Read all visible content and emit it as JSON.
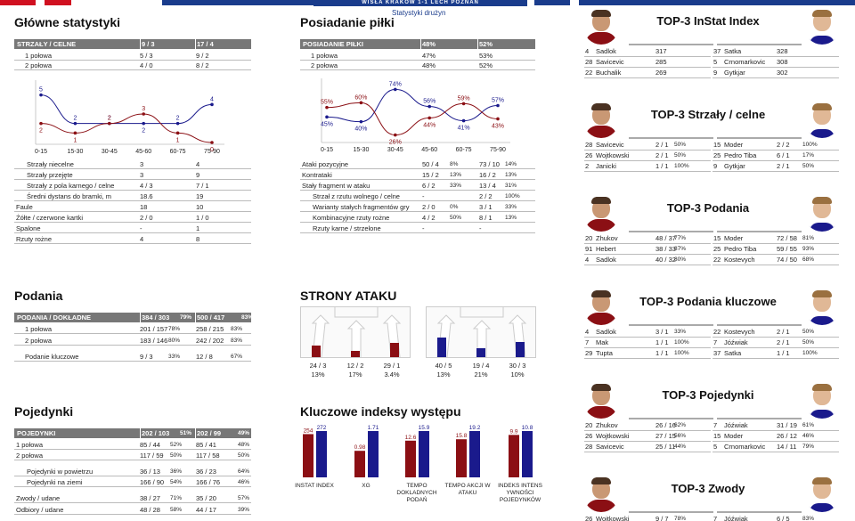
{
  "match_title": "WISŁA KRAKÓW 1-1 LECH POZNAŃ",
  "subtitle": "Statystyki drużyn",
  "colors": {
    "home": "#8b0f14",
    "away": "#1a1a8c",
    "header": "#777777"
  },
  "main_stats": {
    "title": "Główne statystyki",
    "header": {
      "label": "STRZAŁY / CELNE",
      "home": "9 / 3",
      "away": "17 / 4"
    },
    "rows": [
      {
        "label": "1 połowa",
        "home": "5 / 3",
        "away": "9 / 2"
      },
      {
        "label": "2 połowa",
        "home": "4 / 0",
        "away": "8 / 2"
      }
    ],
    "chart_data": {
      "type": "line",
      "categories": [
        "0-15",
        "15-30",
        "30-45",
        "45-60",
        "60-75",
        "75-90"
      ],
      "series": [
        {
          "color": "#1a1a8c",
          "values": [
            5,
            2,
            2,
            2,
            2,
            4
          ]
        },
        {
          "color": "#8b0f14",
          "values": [
            2,
            1,
            2,
            3,
            1,
            0
          ]
        }
      ],
      "ylim": [
        0,
        6
      ]
    },
    "rows2": [
      {
        "label": "Strzały niecelne",
        "home": "3",
        "away": "4",
        "indent": true
      },
      {
        "label": "Strzały przejęte",
        "home": "3",
        "away": "9",
        "indent": true
      },
      {
        "label": "Strzały z pola karnego / celne",
        "home": "4 / 3",
        "away": "7 / 1",
        "indent": true
      },
      {
        "label": "Średni dystans do bramki, m",
        "home": "18.6",
        "away": "19",
        "indent": true
      },
      {
        "label": "Faule",
        "home": "18",
        "away": "10",
        "indent": false
      },
      {
        "label": "Żółte / czerwone kartki",
        "home": "2 / 0",
        "away": "1 / 0",
        "indent": false
      },
      {
        "label": "Spalone",
        "home": "-",
        "away": "1",
        "indent": false
      },
      {
        "label": "Rzuty rożne",
        "home": "4",
        "away": "8",
        "indent": false
      }
    ]
  },
  "possession": {
    "title": "Posiadanie piłki",
    "header": {
      "label": "POSIADANIE PIŁKI",
      "home": "48%",
      "away": "52%"
    },
    "rows": [
      {
        "label": "1 połowa",
        "home": "47%",
        "away": "53%"
      },
      {
        "label": "2 połowa",
        "home": "48%",
        "away": "52%"
      }
    ],
    "chart_data": {
      "type": "line",
      "categories": [
        "0-15",
        "15-30",
        "30-45",
        "45-60",
        "60-75",
        "75-90"
      ],
      "series": [
        {
          "color": "#1a1a8c",
          "values": [
            45,
            40,
            74,
            56,
            41,
            57
          ]
        },
        {
          "color": "#8b0f14",
          "values": [
            55,
            60,
            26,
            44,
            59,
            43
          ]
        }
      ],
      "ylim": [
        20,
        80
      ],
      "value_labels": [
        "45%",
        "40%",
        "74%",
        "56%",
        "41%",
        "57%",
        "55%",
        "60%",
        "26%",
        "44%",
        "59%",
        "43%"
      ]
    },
    "rows2": [
      {
        "label": "Ataki pozycyjne",
        "home": "50 / 4",
        "hp": "8%",
        "away": "73 / 10",
        "ap": "14%",
        "indent": 0
      },
      {
        "label": "Kontrataki",
        "home": "15 / 2",
        "hp": "13%",
        "away": "16 / 2",
        "ap": "13%",
        "indent": 0
      },
      {
        "label": "Stały fragment w ataku",
        "home": "6 / 2",
        "hp": "33%",
        "away": "13 / 4",
        "ap": "31%",
        "indent": 0
      },
      {
        "label": "Strzał z rzutu wolnego / celne",
        "home": "-",
        "hp": "",
        "away": "2 / 2",
        "ap": "100%",
        "indent": 1
      },
      {
        "label": "Warianty stałych fragmentów gry",
        "home": "2 / 0",
        "hp": "0%",
        "away": "3 / 1",
        "ap": "33%",
        "indent": 1
      },
      {
        "label": "Kombinacyjne rzuty rożne",
        "home": "4 / 2",
        "hp": "50%",
        "away": "8 / 1",
        "ap": "13%",
        "indent": 1
      },
      {
        "label": "Rzuty karne / strzelone",
        "home": "-",
        "hp": "",
        "away": "-",
        "ap": "",
        "indent": 1
      }
    ]
  },
  "passes": {
    "title": "Podania",
    "header": {
      "label": "PODANIA / DOKŁADNE",
      "home": "384 / 303",
      "hp": "79%",
      "away": "500 / 417",
      "ap": "83%"
    },
    "rows": [
      {
        "label": "1 połowa",
        "home": "201 / 157",
        "hp": "78%",
        "away": "258 / 215",
        "ap": "83%"
      },
      {
        "label": "2 połowa",
        "home": "183 / 146",
        "hp": "80%",
        "away": "242 / 202",
        "ap": "83%"
      },
      {
        "label": "Podanie kluczowe",
        "home": "9 / 3",
        "hp": "33%",
        "away": "12 / 8",
        "ap": "67%"
      }
    ]
  },
  "attack_sides": {
    "title": "STRONY ATAKU",
    "home": [
      {
        "count": "24 / 3",
        "pct": "13%",
        "share": 24
      },
      {
        "count": "12 / 2",
        "pct": "17%",
        "share": 12
      },
      {
        "count": "29 / 1",
        "pct": "3.4%",
        "share": 29
      }
    ],
    "away": [
      {
        "count": "40 / 5",
        "pct": "13%",
        "share": 40
      },
      {
        "count": "19 / 4",
        "pct": "21%",
        "share": 19
      },
      {
        "count": "30 / 3",
        "pct": "10%",
        "share": 30
      }
    ]
  },
  "duels": {
    "title": "Pojedynki",
    "header": {
      "label": "POJEDYNKI",
      "home": "202 / 103",
      "hp": "51%",
      "away": "202 / 99",
      "ap": "49%"
    },
    "rows": [
      {
        "label": "1 połowa",
        "home": "85 / 44",
        "hp": "52%",
        "away": "85 / 41",
        "ap": "48%",
        "indent": false
      },
      {
        "label": "2 połowa",
        "home": "117 / 59",
        "hp": "50%",
        "away": "117 / 58",
        "ap": "50%",
        "indent": false
      },
      {
        "label": "Pojedynki w powietrzu",
        "home": "36 / 13",
        "hp": "36%",
        "away": "36 / 23",
        "ap": "64%",
        "indent": true
      },
      {
        "label": "Pojedynki na ziemi",
        "home": "166 / 90",
        "hp": "54%",
        "away": "166 / 76",
        "ap": "46%",
        "indent": true
      },
      {
        "label": "Zwody / udane",
        "home": "38 / 27",
        "hp": "71%",
        "away": "35 / 20",
        "ap": "57%",
        "indent": false
      },
      {
        "label": "Odbiory / udane",
        "home": "48 / 28",
        "hp": "58%",
        "away": "44 / 17",
        "ap": "39%",
        "indent": false
      }
    ]
  },
  "key_indexes": {
    "title": "Kluczowe indeksy występu",
    "chart_data": {
      "type": "bar",
      "categories": [
        "INSTAT INDEX",
        "XG",
        "TEMPO DOKLADNYCH PODAŃ",
        "TEMPO AKCJI W ATAKU",
        "INDEKS INTENSYWNOŚCI POJEDYNKÓW"
      ],
      "series": [
        {
          "color": "#8b0f14",
          "values": [
            254,
            0.98,
            12.6,
            15.8,
            9.9
          ],
          "labels": [
            "254",
            "0.98",
            "12.6",
            "15.8",
            "9.9"
          ]
        },
        {
          "color": "#1a1a8c",
          "values": [
            272,
            1.71,
            15.9,
            19.2,
            10.8
          ],
          "labels": [
            "272",
            "1.71",
            "15.9",
            "19.2",
            "10.8"
          ]
        }
      ],
      "label_lines": [
        [
          "INSTAT INDEX"
        ],
        [
          "XG"
        ],
        [
          "TEMPO",
          "DOKLADNYCH",
          "PODAŃ"
        ],
        [
          "TEMPO AKCJI W",
          "ATAKU"
        ],
        [
          "INDEKS INTENS",
          "YWNOŚCI",
          "POJEDYNKÓW"
        ]
      ]
    }
  },
  "top3": [
    {
      "title": "TOP-3 InStat Index",
      "home": [
        [
          "4",
          "Sadlok",
          "317",
          ""
        ],
        [
          "28",
          "Savicevic",
          "285",
          ""
        ],
        [
          "22",
          "Buchalik",
          "269",
          ""
        ]
      ],
      "away": [
        [
          "37",
          "Satka",
          "328",
          ""
        ],
        [
          "5",
          "Crnomarkovic",
          "308",
          ""
        ],
        [
          "9",
          "Gytkjar",
          "302",
          ""
        ]
      ]
    },
    {
      "title": "TOP-3 Strzały / celne",
      "home": [
        [
          "28",
          "Savicevic",
          "2 / 1",
          "50%"
        ],
        [
          "26",
          "Wojtkowski",
          "2 / 1",
          "50%"
        ],
        [
          "2",
          "Janicki",
          "1 / 1",
          "100%"
        ]
      ],
      "away": [
        [
          "15",
          "Moder",
          "2 / 2",
          "100%"
        ],
        [
          "25",
          "Pedro Tiba",
          "6 / 1",
          "17%"
        ],
        [
          "9",
          "Gytkjar",
          "2 / 1",
          "50%"
        ]
      ]
    },
    {
      "title": "TOP-3 Podania",
      "home": [
        [
          "20",
          "Zhukov",
          "48 / 37",
          "77%"
        ],
        [
          "91",
          "Hebert",
          "38 / 33",
          "87%"
        ],
        [
          "4",
          "Sadlok",
          "40 / 32",
          "80%"
        ]
      ],
      "away": [
        [
          "15",
          "Moder",
          "72 / 58",
          "81%"
        ],
        [
          "25",
          "Pedro Tiba",
          "59 / 55",
          "93%"
        ],
        [
          "22",
          "Kostevych",
          "74 / 50",
          "68%"
        ]
      ]
    },
    {
      "title": "TOP-3 Podania kluczowe",
      "home": [
        [
          "4",
          "Sadlok",
          "3 / 1",
          "33%"
        ],
        [
          "7",
          "Mak",
          "1 / 1",
          "100%"
        ],
        [
          "29",
          "Tupta",
          "1 / 1",
          "100%"
        ]
      ],
      "away": [
        [
          "22",
          "Kostevych",
          "2 / 1",
          "50%"
        ],
        [
          "7",
          "Jóźwiak",
          "2 / 1",
          "50%"
        ],
        [
          "37",
          "Satka",
          "1 / 1",
          "100%"
        ]
      ]
    },
    {
      "title": "TOP-3 Pojedynki",
      "home": [
        [
          "20",
          "Zhukov",
          "26 / 16",
          "62%"
        ],
        [
          "26",
          "Wojtkowski",
          "27 / 15",
          "56%"
        ],
        [
          "28",
          "Savicevic",
          "25 / 11",
          "44%"
        ]
      ],
      "away": [
        [
          "7",
          "Jóźwiak",
          "31 / 19",
          "61%"
        ],
        [
          "15",
          "Moder",
          "26 / 12",
          "46%"
        ],
        [
          "5",
          "Crnomarkovic",
          "14 / 11",
          "79%"
        ]
      ]
    },
    {
      "title": "TOP-3 Zwody",
      "home": [
        [
          "26",
          "Wojtkowski",
          "9 / 7",
          "78%"
        ]
      ],
      "away": [
        [
          "7",
          "Jóźwiak",
          "6 / 5",
          "83%"
        ]
      ]
    }
  ]
}
